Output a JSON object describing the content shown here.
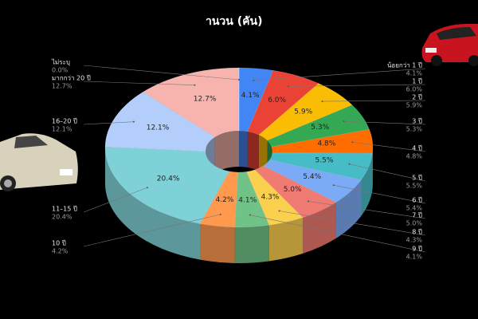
{
  "chart_data": {
    "type": "donut3d",
    "title": "านวน (คัน)",
    "categories": [
      "น้อยกว่า 1 ปี",
      "1 ปี",
      "2 ปี",
      "3 ปี",
      "4 ปี",
      "5 ปี",
      "6 ปี",
      "7 ปี",
      "8 ปี",
      "9 ปี",
      "10 ปี",
      "11–15 ปี",
      "16–20 ปี",
      "มากกว่า 20 ปี",
      "ไม่ระบุ"
    ],
    "values": [
      4.1,
      6.0,
      5.9,
      5.3,
      4.8,
      5.5,
      5.4,
      5.0,
      4.3,
      4.1,
      4.2,
      20.4,
      12.1,
      12.7,
      0.0
    ],
    "value_labels": [
      "4.1%",
      "6.0%",
      "5.9%",
      "5.3%",
      "4.8%",
      "5.5%",
      "5.4%",
      "5.0%",
      "4.3%",
      "4.1%",
      "4.2%",
      "20.4%",
      "12.1%",
      "12.7%",
      "0.0%"
    ],
    "colors": [
      "#4285f4",
      "#ea4335",
      "#fbbc04",
      "#34a853",
      "#ff6d01",
      "#46bdc6",
      "#7baaf7",
      "#f07b72",
      "#fcd04f",
      "#71c287",
      "#ff994d",
      "#7ed1d7",
      "#b3cefb",
      "#f7b4ae",
      "#999999"
    ]
  }
}
